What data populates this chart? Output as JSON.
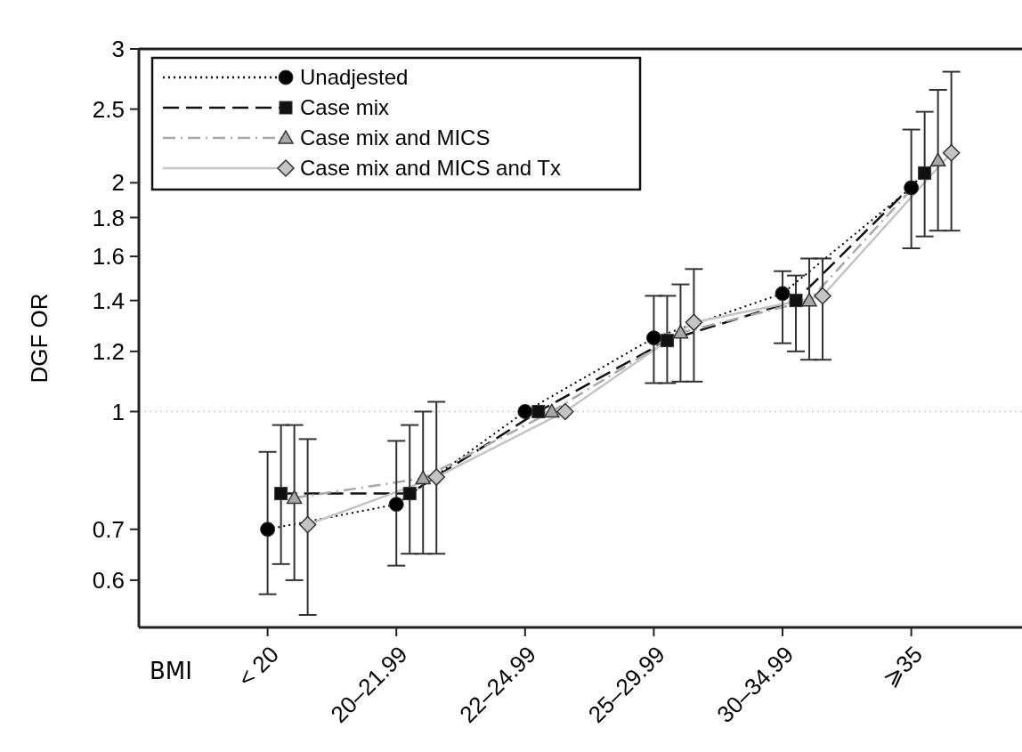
{
  "chart_data": {
    "type": "line",
    "ylabel": "DGF OR",
    "xlabel": "BMI",
    "categories": [
      "< 20",
      "20–21.99",
      "22–24.99",
      "25–29.99",
      "30–34.99",
      "⩾35"
    ],
    "log": "y",
    "ylim": [
      0.52,
      3
    ],
    "yticks": [
      0.6,
      0.7,
      1,
      1.2,
      1.4,
      1.6,
      1.8,
      2,
      2.5,
      3
    ],
    "grid": false,
    "legend": "top left",
    "ref_lines": [
      {
        "axis": "y",
        "value": 1,
        "color": "#cccccc",
        "line_style": "dotted"
      }
    ],
    "series": [
      {
        "name": "Unadjested",
        "color": "#000000",
        "marker": "circle",
        "line_style": "dotted",
        "values": [
          0.7,
          0.755,
          1,
          1.25,
          1.43,
          1.97
        ],
        "errors": [
          [
            0.575,
            0.885
          ],
          [
            0.627,
            0.915
          ],
          null,
          [
            1.09,
            1.42
          ],
          [
            1.23,
            1.53
          ],
          [
            1.64,
            2.35
          ]
        ]
      },
      {
        "name": "Case mix",
        "color": "#111111",
        "marker": "square",
        "line_style": "dashed",
        "values": [
          0.78,
          0.78,
          1,
          1.24,
          1.4,
          2.06
        ],
        "errors": [
          [
            0.63,
            0.96
          ],
          [
            0.65,
            0.96
          ],
          null,
          [
            1.09,
            1.42
          ],
          [
            1.2,
            1.51
          ],
          [
            1.7,
            2.48
          ]
        ]
      },
      {
        "name": "Case mix and MICS",
        "color": "#a8a8a8",
        "marker": "triangle",
        "line_style": "dashdot",
        "values": [
          0.77,
          0.817,
          1,
          1.27,
          1.4,
          2.14
        ],
        "errors": [
          [
            0.6,
            0.96
          ],
          [
            0.65,
            1.0
          ],
          null,
          [
            1.095,
            1.47
          ],
          [
            1.17,
            1.59
          ],
          [
            1.73,
            2.65
          ]
        ]
      },
      {
        "name": "Case mix and MICS and Tx",
        "color": "#c4c4c4",
        "marker": "diamond",
        "line_style": "solid",
        "values": [
          0.71,
          0.82,
          1,
          1.31,
          1.42,
          2.19
        ],
        "errors": [
          [
            0.54,
            0.92
          ],
          [
            0.65,
            1.03
          ],
          null,
          [
            1.095,
            1.54
          ],
          [
            1.17,
            1.59
          ],
          [
            1.73,
            2.8
          ]
        ]
      }
    ]
  }
}
